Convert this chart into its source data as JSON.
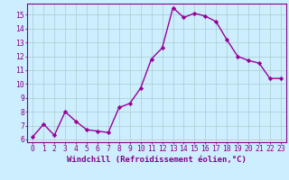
{
  "x": [
    0,
    1,
    2,
    3,
    4,
    5,
    6,
    7,
    8,
    9,
    10,
    11,
    12,
    13,
    14,
    15,
    16,
    17,
    18,
    19,
    20,
    21,
    22,
    23
  ],
  "y": [
    6.2,
    7.1,
    6.3,
    8.0,
    7.3,
    6.7,
    6.6,
    6.5,
    8.3,
    8.6,
    9.7,
    11.8,
    12.6,
    15.5,
    14.8,
    15.1,
    14.9,
    14.5,
    13.2,
    12.0,
    11.7,
    11.5,
    10.4,
    10.4
  ],
  "line_color": "#990099",
  "marker": "D",
  "marker_size": 2.2,
  "line_width": 1.0,
  "bg_color": "#cceeff",
  "grid_color": "#aacccc",
  "axis_color": "#880088",
  "tick_color": "#880088",
  "xlabel": "Windchill (Refroidissement éolien,°C)",
  "xlabel_fontsize": 6.5,
  "ylabel_ticks": [
    6,
    7,
    8,
    9,
    10,
    11,
    12,
    13,
    14,
    15
  ],
  "xlim": [
    -0.5,
    23.5
  ],
  "ylim": [
    5.8,
    15.8
  ],
  "xticks": [
    0,
    1,
    2,
    3,
    4,
    5,
    6,
    7,
    8,
    9,
    10,
    11,
    12,
    13,
    14,
    15,
    16,
    17,
    18,
    19,
    20,
    21,
    22,
    23
  ],
  "tick_fontsize": 5.8,
  "font_family": "monospace"
}
